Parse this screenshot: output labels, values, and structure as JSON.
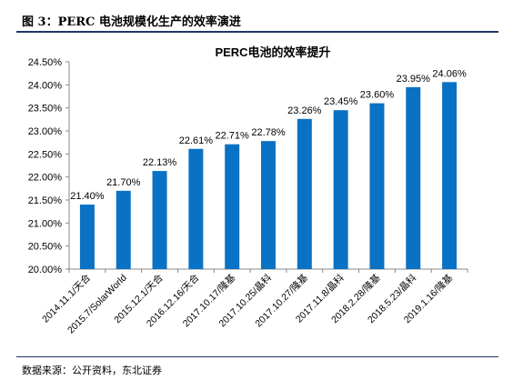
{
  "figure": {
    "title": "图 3：PERC 电池规模化生产的效率演进",
    "source": "数据来源：公开资料，东北证券"
  },
  "colors": {
    "bar": "#0a72c4",
    "axis": "#888888",
    "frame": "#1f3864"
  },
  "chart_data": {
    "type": "bar",
    "title": "PERC电池的效率提升",
    "xlabel": "",
    "ylabel": "",
    "categories": [
      "2014.11.1/天合",
      "2015.7/SolarWorld",
      "2015.12.1/天合",
      "2016.12.16/天合",
      "2017.10.17/隆基",
      "2017.10.25/晶科",
      "2017.10.27/隆基",
      "2017.11.8/晶科",
      "2018.2.28/隆基",
      "2018.5.23/晶科",
      "2019.1.16/隆基"
    ],
    "values": [
      21.4,
      21.7,
      22.13,
      22.61,
      22.71,
      22.78,
      23.26,
      23.45,
      23.6,
      23.95,
      24.06
    ],
    "value_labels": [
      "21.40%",
      "21.70%",
      "22.13%",
      "22.61%",
      "22.71%",
      "22.78%",
      "23.26%",
      "23.45%",
      "23.60%",
      "23.95%",
      "24.06%"
    ],
    "ylim": [
      20.0,
      24.5
    ],
    "yticks": [
      20.0,
      20.5,
      21.0,
      21.5,
      22.0,
      22.5,
      23.0,
      23.5,
      24.0,
      24.5
    ],
    "ytick_labels": [
      "20.00%",
      "20.50%",
      "21.00%",
      "21.50%",
      "22.00%",
      "22.50%",
      "23.00%",
      "23.50%",
      "24.00%",
      "24.50%"
    ],
    "grid": false,
    "legend": "none"
  }
}
